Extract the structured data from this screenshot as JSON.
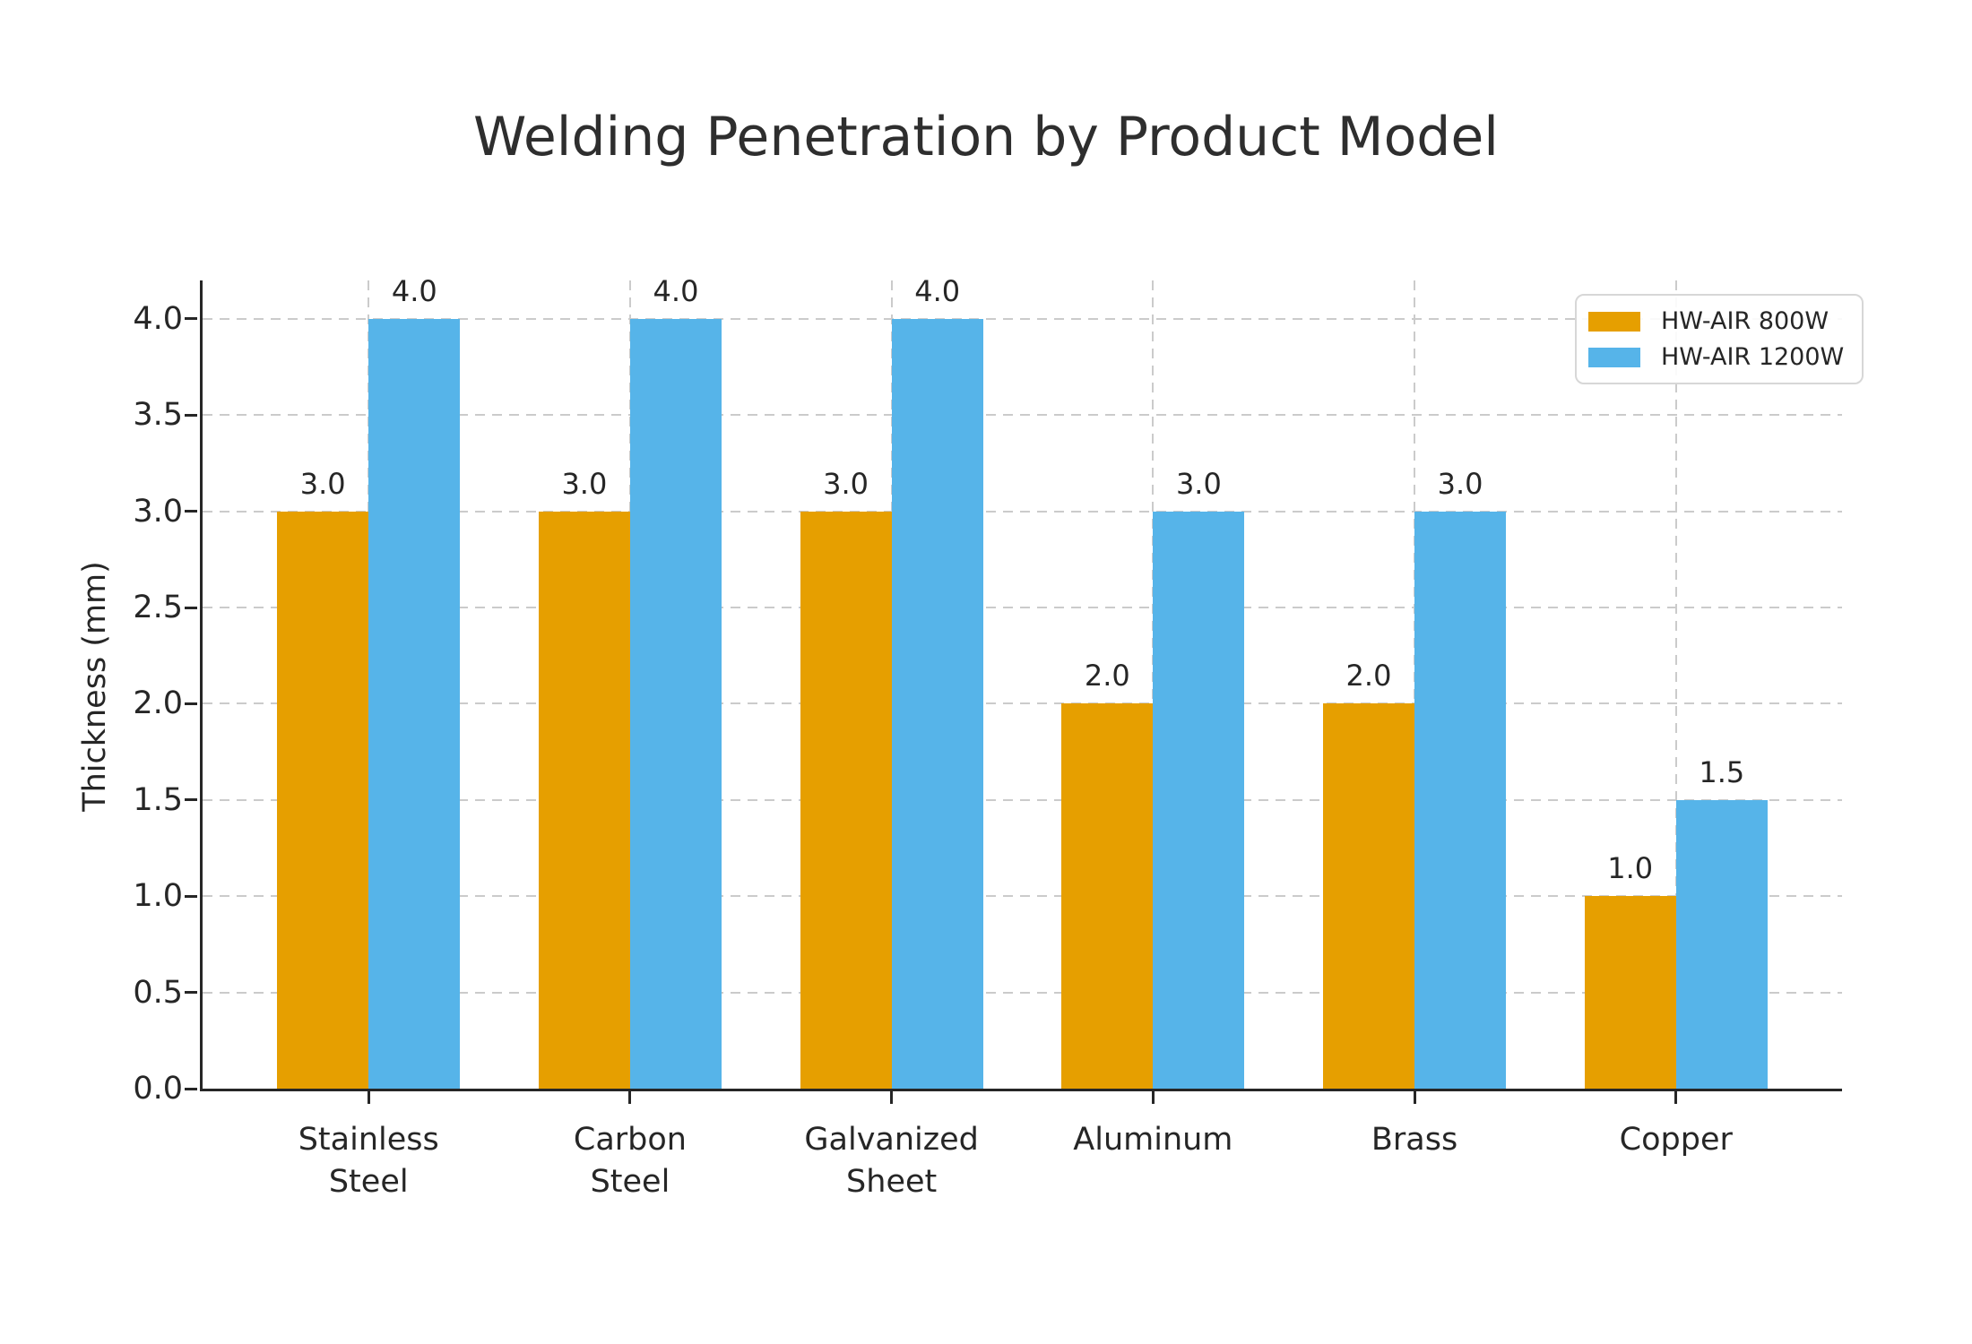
{
  "chart_data": {
    "type": "bar",
    "title": "Welding Penetration by Product Model",
    "ylabel": "Thickness (mm)",
    "xlabel": "",
    "categories": [
      "Stainless\nSteel",
      "Carbon\nSteel",
      "Galvanized\nSheet",
      "Aluminum",
      "Brass",
      "Copper"
    ],
    "series": [
      {
        "name": "HW-AIR 800W",
        "color": "#E69F00",
        "values": [
          3.0,
          3.0,
          3.0,
          2.0,
          2.0,
          1.0
        ]
      },
      {
        "name": "HW-AIR 1200W",
        "color": "#56B4E9",
        "values": [
          4.0,
          4.0,
          4.0,
          3.0,
          3.0,
          1.5
        ]
      }
    ],
    "yticks": [
      0.0,
      0.5,
      1.0,
      1.5,
      2.0,
      2.5,
      3.0,
      3.5,
      4.0
    ],
    "ylim": [
      0,
      4.2
    ],
    "xlim": [
      -0.635,
      5.635
    ],
    "bar_width": 0.35,
    "value_labels": true,
    "grid": true,
    "legend_position": "upper right",
    "colors": {
      "accent_orange": "#E69F00",
      "accent_blue": "#56B4E9",
      "text": "#262626",
      "grid": "#cbcbcb",
      "spine": "#262626",
      "background": "#ffffff"
    }
  }
}
